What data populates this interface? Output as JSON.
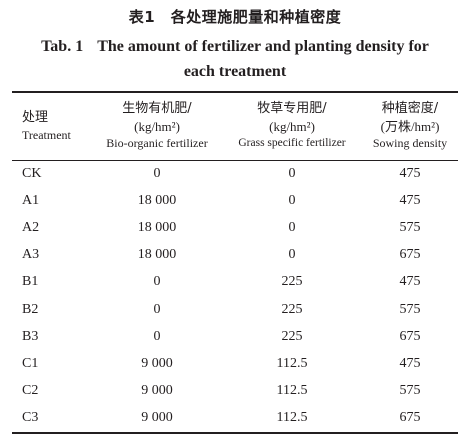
{
  "title": {
    "cn": "表1　各处理施肥量和种植密度",
    "en_label": "Tab. 1",
    "en_line1": "The amount of fertilizer and planting density for",
    "en_line2": "each treatment"
  },
  "headers": [
    {
      "cn": "处理",
      "unit": "",
      "en": "Treatment"
    },
    {
      "cn": "生物有机肥/",
      "unit": "kg/hm²",
      "en": "Bio-organic fertilizer"
    },
    {
      "cn": "牧草专用肥/",
      "unit": "kg/hm²",
      "en": "Grass specific fertilizer"
    },
    {
      "cn": "种植密度/",
      "unit": "万株/hm²",
      "en": "Sowing density"
    }
  ],
  "rows": [
    [
      "CK",
      "0",
      "0",
      "475"
    ],
    [
      "A1",
      "18 000",
      "0",
      "475"
    ],
    [
      "A2",
      "18 000",
      "0",
      "575"
    ],
    [
      "A3",
      "18 000",
      "0",
      "675"
    ],
    [
      "B1",
      "0",
      "225",
      "475"
    ],
    [
      "B2",
      "0",
      "225",
      "575"
    ],
    [
      "B3",
      "0",
      "225",
      "675"
    ],
    [
      "C1",
      "9 000",
      "112.5",
      "475"
    ],
    [
      "C2",
      "9 000",
      "112.5",
      "575"
    ],
    [
      "C3",
      "9 000",
      "112.5",
      "675"
    ]
  ]
}
